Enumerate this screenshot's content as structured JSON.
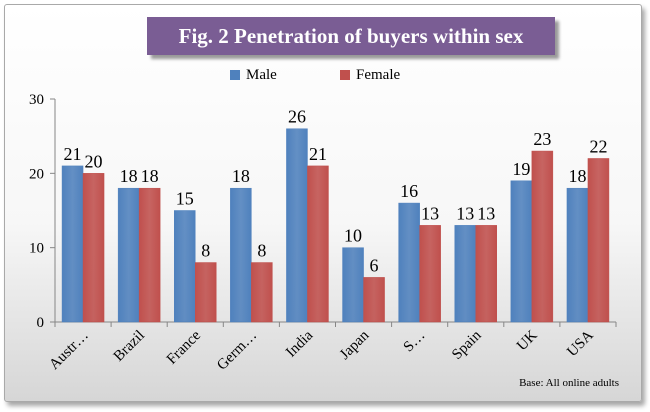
{
  "title": "Fig. 2 Penetration of buyers within sex",
  "footnote": "Base: All online adults",
  "colors": {
    "male": "#4f81bd",
    "female": "#c0504d",
    "title_bg": "#7a5d94"
  },
  "chart_data": {
    "type": "bar",
    "categories": [
      "Austr…",
      "Brazil",
      "France",
      "Germ…",
      "India",
      "Japan",
      "S…",
      "Spain",
      "UK",
      "USA"
    ],
    "series": [
      {
        "name": "Male",
        "values": [
          21,
          18,
          15,
          18,
          26,
          10,
          16,
          13,
          19,
          18
        ]
      },
      {
        "name": "Female",
        "values": [
          20,
          18,
          8,
          8,
          21,
          6,
          13,
          13,
          23,
          22
        ]
      }
    ],
    "ylim": [
      0,
      30
    ],
    "yticks": [
      0,
      10,
      20,
      30
    ],
    "grid": false,
    "legend": "top-center"
  }
}
